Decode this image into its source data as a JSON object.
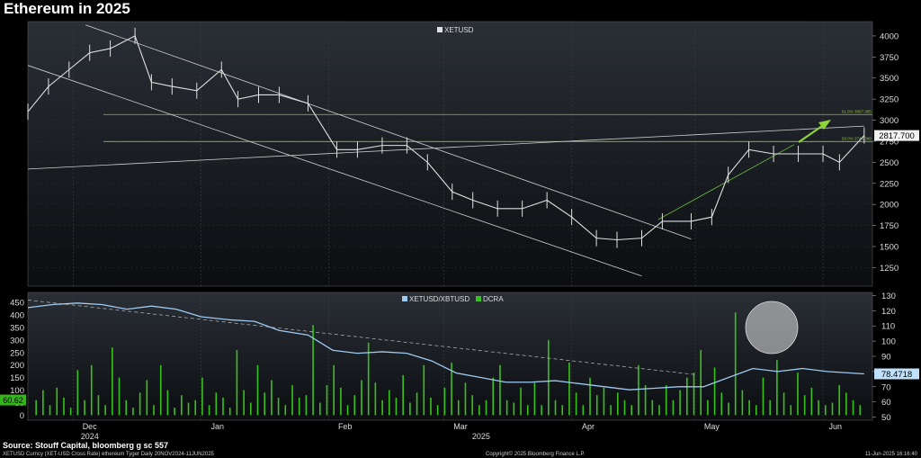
{
  "title": "Ethereum in 2025",
  "source": "Source: Stouff Capital, bloomberg g sc 557",
  "footer": {
    "left": "XETUSD Curncy (XET-USD Cross Rate) ethereum Tyger  Daily 20NOV2024-11JUN2025",
    "center": "Copyright© 2025 Bloomberg Finance L.P.",
    "right": "11-Jun-2025 16:16:40"
  },
  "colors": {
    "background": "#000000",
    "price_line": "#e0e0e0",
    "ratio_line": "#9ecaf2",
    "dcra_bar": "#39c21c",
    "fib_line": "#8fbf3f",
    "arrow": "#8fd43a",
    "last_label_bg": "#f2f2f2",
    "ratio_label_bg": "#bfe0fa",
    "left_label_bg": "#35b51c"
  },
  "chart_data": [
    {
      "type": "line",
      "panel": "upper",
      "legend": [
        "XETUSD"
      ],
      "legend_position": "top-center",
      "x_tick_labels": [
        "Dec",
        "Jan",
        "Feb",
        "Mar",
        "Apr",
        "May",
        "Jun"
      ],
      "x_year_labels": [
        "2024",
        "2025"
      ],
      "y_ticks": [
        1250,
        1500,
        1750,
        2000,
        2250,
        2500,
        2750,
        3000,
        3250,
        3500,
        3750,
        4000
      ],
      "ylim": [
        1030,
        4170
      ],
      "last_value_label": "2817.700",
      "level_annotations": [
        {
          "label": "61.8% 3067.385",
          "value": 3067
        },
        {
          "label": "50.0% 2746.399",
          "value": 2746
        }
      ],
      "series": [
        {
          "name": "XETUSD",
          "x": [
            "2024-11-20",
            "2024-11-25",
            "2024-11-30",
            "2024-12-05",
            "2024-12-10",
            "2024-12-16",
            "2024-12-20",
            "2024-12-25",
            "2024-12-31",
            "2025-01-06",
            "2025-01-10",
            "2025-01-15",
            "2025-01-20",
            "2025-01-27",
            "2025-02-03",
            "2025-02-08",
            "2025-02-14",
            "2025-02-20",
            "2025-02-25",
            "2025-03-03",
            "2025-03-08",
            "2025-03-14",
            "2025-03-20",
            "2025-03-26",
            "2025-04-01",
            "2025-04-07",
            "2025-04-12",
            "2025-04-18",
            "2025-04-23",
            "2025-04-30",
            "2025-05-05",
            "2025-05-09",
            "2025-05-14",
            "2025-05-20",
            "2025-05-26",
            "2025-06-01",
            "2025-06-05",
            "2025-06-11"
          ],
          "values": [
            3100,
            3400,
            3600,
            3800,
            3850,
            4000,
            3450,
            3400,
            3350,
            3600,
            3250,
            3300,
            3300,
            3200,
            2650,
            2650,
            2700,
            2700,
            2500,
            2150,
            2050,
            1950,
            1950,
            2050,
            1850,
            1600,
            1580,
            1600,
            1800,
            1800,
            1850,
            2350,
            2650,
            2600,
            2600,
            2600,
            2500,
            2817.7
          ]
        }
      ]
    },
    {
      "type": "bar",
      "panel": "lower",
      "legend": [
        "XETUSD/XBTUSD",
        "DCRA"
      ],
      "legend_position": "top-center",
      "left_y_ticks": [
        0,
        50,
        100,
        150,
        200,
        250,
        300,
        350,
        400,
        450
      ],
      "left_ylim": [
        -20,
        490
      ],
      "right_y_ticks": [
        50,
        60,
        70,
        80,
        90,
        100,
        110,
        120,
        130
      ],
      "right_ylim": [
        48,
        132
      ],
      "left_value_label": "60.62",
      "right_value_label": "78.4718",
      "series": [
        {
          "name": "XETUSD/XBTUSD",
          "axis": "right",
          "x": [
            "2024-11-20",
            "2024-11-26",
            "2024-12-02",
            "2024-12-08",
            "2024-12-14",
            "2024-12-20",
            "2024-12-26",
            "2025-01-01",
            "2025-01-08",
            "2025-01-14",
            "2025-01-20",
            "2025-01-27",
            "2025-02-02",
            "2025-02-08",
            "2025-02-14",
            "2025-02-20",
            "2025-02-26",
            "2025-03-04",
            "2025-03-10",
            "2025-03-16",
            "2025-03-22",
            "2025-03-28",
            "2025-04-03",
            "2025-04-09",
            "2025-04-15",
            "2025-04-21",
            "2025-04-27",
            "2025-05-03",
            "2025-05-09",
            "2025-05-15",
            "2025-05-21",
            "2025-05-27",
            "2025-06-02",
            "2025-06-08",
            "2025-06-11"
          ],
          "values": [
            122,
            124,
            125,
            124,
            121,
            123,
            121,
            116,
            114,
            113,
            107,
            104,
            94,
            92,
            93,
            92,
            87,
            79,
            76,
            73,
            73,
            74,
            72,
            70,
            68,
            69,
            70,
            70,
            76,
            82,
            80,
            82,
            80,
            79,
            78.47
          ]
        },
        {
          "name": "DCRA",
          "axis": "left",
          "values": [
            60,
            100,
            40,
            110,
            70,
            30,
            180,
            60,
            200,
            80,
            40,
            270,
            150,
            60,
            30,
            90,
            140,
            40,
            200,
            100,
            30,
            80,
            50,
            60,
            150,
            40,
            90,
            70,
            30,
            260,
            100,
            50,
            200,
            90,
            140,
            70,
            40,
            120,
            70,
            80,
            360,
            50,
            120,
            200,
            110,
            40,
            80,
            140,
            290,
            130,
            60,
            100,
            70,
            160,
            50,
            90,
            200,
            70,
            40,
            110,
            210,
            60,
            130,
            80,
            40,
            60,
            150,
            200,
            60,
            50,
            110,
            40,
            130,
            40,
            300,
            60,
            40,
            210,
            90,
            40,
            150,
            80,
            110,
            40,
            90,
            60,
            40,
            200,
            120,
            60,
            40,
            120,
            60,
            100,
            150,
            170,
            260,
            60,
            190,
            90,
            50,
            410,
            100,
            60,
            40,
            150,
            60,
            220,
            90,
            40,
            170,
            80,
            110,
            60,
            40,
            50,
            120,
            90,
            60,
            40
          ]
        }
      ]
    }
  ]
}
